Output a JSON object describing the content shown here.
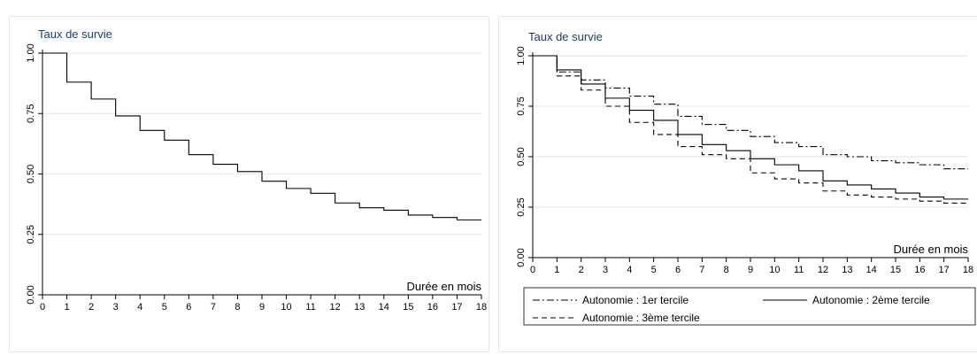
{
  "chart_data": [
    {
      "type": "line",
      "ylabel": "Taux de survie",
      "xlabel": "Durée en mois",
      "xlim": [
        0,
        18
      ],
      "ylim": [
        0,
        1
      ],
      "x_ticks": [
        "0",
        "1",
        "2",
        "3",
        "4",
        "5",
        "6",
        "7",
        "8",
        "9",
        "10",
        "11",
        "12",
        "13",
        "14",
        "15",
        "16",
        "17",
        "18"
      ],
      "y_ticks": [
        "0.00",
        "0.25",
        "0.50",
        "0.75",
        "1.00"
      ],
      "grid": true,
      "step": true,
      "x": [
        0,
        1,
        2,
        3,
        4,
        5,
        6,
        7,
        8,
        9,
        10,
        11,
        12,
        13,
        14,
        15,
        16,
        17,
        18
      ],
      "series": [
        {
          "name": "",
          "style": "solid",
          "values": [
            1.0,
            0.88,
            0.81,
            0.74,
            0.68,
            0.64,
            0.58,
            0.54,
            0.51,
            0.47,
            0.44,
            0.42,
            0.38,
            0.36,
            0.35,
            0.33,
            0.32,
            0.31,
            0.31
          ]
        }
      ]
    },
    {
      "type": "line",
      "ylabel": "Taux de survie",
      "xlabel": "Durée en mois",
      "xlim": [
        0,
        18
      ],
      "ylim": [
        0,
        1
      ],
      "x_ticks": [
        "0",
        "1",
        "2",
        "3",
        "4",
        "5",
        "6",
        "7",
        "8",
        "9",
        "10",
        "11",
        "12",
        "13",
        "14",
        "15",
        "16",
        "17",
        "18"
      ],
      "y_ticks": [
        "0.00",
        "0.25",
        "0.50",
        "0.75",
        "1.00"
      ],
      "grid": true,
      "step": true,
      "legend_position": "bottom",
      "x": [
        0,
        1,
        2,
        3,
        4,
        5,
        6,
        7,
        8,
        9,
        10,
        11,
        12,
        13,
        14,
        15,
        16,
        17,
        18
      ],
      "series": [
        {
          "name": "Autonomie : 1er tercile",
          "style": "dashdot",
          "values": [
            1.0,
            0.92,
            0.88,
            0.84,
            0.8,
            0.76,
            0.7,
            0.66,
            0.63,
            0.6,
            0.57,
            0.55,
            0.51,
            0.5,
            0.48,
            0.47,
            0.46,
            0.44,
            0.44
          ]
        },
        {
          "name": "Autonomie : 2ème tercile",
          "style": "solid",
          "values": [
            1.0,
            0.93,
            0.86,
            0.79,
            0.73,
            0.68,
            0.61,
            0.56,
            0.53,
            0.49,
            0.46,
            0.43,
            0.38,
            0.36,
            0.34,
            0.32,
            0.3,
            0.29,
            0.29
          ]
        },
        {
          "name": "Autonomie : 3ème tercile",
          "style": "dashed",
          "values": [
            1.0,
            0.9,
            0.83,
            0.75,
            0.67,
            0.61,
            0.55,
            0.51,
            0.49,
            0.42,
            0.39,
            0.37,
            0.33,
            0.31,
            0.3,
            0.29,
            0.28,
            0.27,
            0.27
          ]
        }
      ]
    }
  ],
  "colors": {
    "line": "#000000",
    "grid": "#e6e6e6",
    "axis_title": "#1c3d6e",
    "frame": "#e6e6e6"
  }
}
